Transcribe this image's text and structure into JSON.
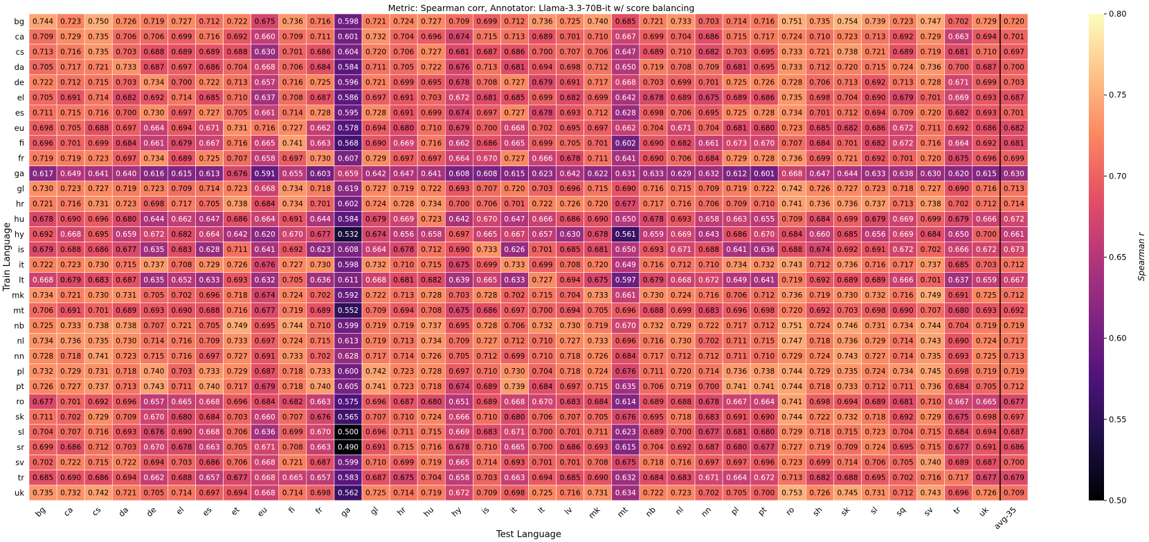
{
  "chart_data": {
    "type": "heatmap",
    "title": "Metric: Spearman corr, Annotator: Llama-3.3-70B-it w/ score balancing",
    "xlabel": "Test Language",
    "ylabel": "Train Language",
    "x_labels": [
      "bg",
      "ca",
      "cs",
      "da",
      "de",
      "el",
      "es",
      "et",
      "eu",
      "fi",
      "fr",
      "ga",
      "gl",
      "hr",
      "hu",
      "hy",
      "is",
      "it",
      "lt",
      "lv",
      "mk",
      "mt",
      "nb",
      "nl",
      "nn",
      "pl",
      "pt",
      "ro",
      "sh",
      "sk",
      "sl",
      "sq",
      "sv",
      "tr",
      "uk",
      "avg-35"
    ],
    "y_labels": [
      "bg",
      "ca",
      "cs",
      "da",
      "de",
      "el",
      "es",
      "eu",
      "fi",
      "fr",
      "ga",
      "gl",
      "hr",
      "hu",
      "hy",
      "is",
      "it",
      "lt",
      "mk",
      "mt",
      "nb",
      "nl",
      "nn",
      "pl",
      "pt",
      "ro",
      "sk",
      "sl",
      "sr",
      "sv",
      "tr",
      "uk"
    ],
    "values": [
      [
        0.744,
        0.723,
        0.75,
        0.726,
        0.719,
        0.727,
        0.712,
        0.722,
        0.675,
        0.736,
        0.716,
        0.598,
        0.721,
        0.724,
        0.727,
        0.709,
        0.699,
        0.712,
        0.736,
        0.725,
        0.74,
        0.685,
        0.721,
        0.733,
        0.703,
        0.714,
        0.716,
        0.751,
        0.735,
        0.754,
        0.739,
        0.723,
        0.747,
        0.702,
        0.729,
        0.72
      ],
      [
        0.709,
        0.729,
        0.735,
        0.706,
        0.706,
        0.699,
        0.716,
        0.692,
        0.66,
        0.709,
        0.711,
        0.601,
        0.732,
        0.704,
        0.696,
        0.674,
        0.715,
        0.713,
        0.689,
        0.701,
        0.71,
        0.667,
        0.699,
        0.704,
        0.686,
        0.715,
        0.717,
        0.724,
        0.71,
        0.723,
        0.713,
        0.692,
        0.729,
        0.663,
        0.694,
        0.701
      ],
      [
        0.713,
        0.716,
        0.735,
        0.703,
        0.688,
        0.689,
        0.689,
        0.688,
        0.63,
        0.701,
        0.686,
        0.604,
        0.72,
        0.706,
        0.727,
        0.681,
        0.687,
        0.686,
        0.7,
        0.707,
        0.706,
        0.647,
        0.689,
        0.71,
        0.682,
        0.703,
        0.695,
        0.733,
        0.721,
        0.738,
        0.721,
        0.689,
        0.719,
        0.681,
        0.71,
        0.697
      ],
      [
        0.705,
        0.717,
        0.721,
        0.733,
        0.687,
        0.697,
        0.686,
        0.704,
        0.668,
        0.706,
        0.684,
        0.584,
        0.711,
        0.705,
        0.722,
        0.676,
        0.713,
        0.681,
        0.694,
        0.698,
        0.712,
        0.65,
        0.719,
        0.708,
        0.709,
        0.681,
        0.695,
        0.733,
        0.712,
        0.72,
        0.715,
        0.724,
        0.736,
        0.7,
        0.687,
        0.7
      ],
      [
        0.722,
        0.712,
        0.715,
        0.703,
        0.734,
        0.7,
        0.722,
        0.713,
        0.657,
        0.716,
        0.725,
        0.596,
        0.721,
        0.699,
        0.695,
        0.678,
        0.708,
        0.727,
        0.679,
        0.691,
        0.717,
        0.668,
        0.703,
        0.699,
        0.701,
        0.725,
        0.726,
        0.728,
        0.706,
        0.713,
        0.692,
        0.713,
        0.728,
        0.671,
        0.699,
        0.703
      ],
      [
        0.705,
        0.691,
        0.714,
        0.682,
        0.692,
        0.714,
        0.685,
        0.71,
        0.637,
        0.708,
        0.687,
        0.586,
        0.697,
        0.691,
        0.703,
        0.672,
        0.681,
        0.685,
        0.699,
        0.682,
        0.699,
        0.642,
        0.678,
        0.689,
        0.675,
        0.689,
        0.686,
        0.735,
        0.698,
        0.704,
        0.69,
        0.679,
        0.701,
        0.669,
        0.693,
        0.687
      ],
      [
        0.711,
        0.715,
        0.716,
        0.7,
        0.73,
        0.697,
        0.727,
        0.705,
        0.661,
        0.714,
        0.728,
        0.595,
        0.728,
        0.691,
        0.699,
        0.674,
        0.697,
        0.727,
        0.678,
        0.693,
        0.712,
        0.628,
        0.698,
        0.706,
        0.695,
        0.725,
        0.728,
        0.734,
        0.701,
        0.712,
        0.694,
        0.709,
        0.72,
        0.682,
        0.693,
        0.701
      ],
      [
        0.698,
        0.705,
        0.688,
        0.697,
        0.664,
        0.694,
        0.671,
        0.731,
        0.716,
        0.727,
        0.662,
        0.578,
        0.694,
        0.68,
        0.71,
        0.679,
        0.7,
        0.668,
        0.702,
        0.695,
        0.697,
        0.662,
        0.704,
        0.671,
        0.704,
        0.681,
        0.68,
        0.723,
        0.685,
        0.682,
        0.686,
        0.672,
        0.711,
        0.692,
        0.686,
        0.682
      ],
      [
        0.696,
        0.701,
        0.699,
        0.684,
        0.661,
        0.679,
        0.667,
        0.716,
        0.665,
        0.741,
        0.663,
        0.568,
        0.69,
        0.669,
        0.716,
        0.662,
        0.686,
        0.665,
        0.699,
        0.705,
        0.701,
        0.602,
        0.69,
        0.682,
        0.661,
        0.673,
        0.67,
        0.707,
        0.684,
        0.701,
        0.682,
        0.672,
        0.716,
        0.664,
        0.692,
        0.681
      ],
      [
        0.719,
        0.719,
        0.723,
        0.697,
        0.734,
        0.689,
        0.725,
        0.707,
        0.658,
        0.697,
        0.73,
        0.607,
        0.729,
        0.697,
        0.697,
        0.664,
        0.67,
        0.727,
        0.666,
        0.678,
        0.711,
        0.641,
        0.69,
        0.706,
        0.684,
        0.729,
        0.728,
        0.736,
        0.699,
        0.721,
        0.692,
        0.701,
        0.72,
        0.675,
        0.696,
        0.699
      ],
      [
        0.617,
        0.649,
        0.641,
        0.64,
        0.616,
        0.615,
        0.613,
        0.676,
        0.591,
        0.655,
        0.603,
        0.659,
        0.642,
        0.647,
        0.641,
        0.608,
        0.608,
        0.615,
        0.623,
        0.642,
        0.622,
        0.631,
        0.633,
        0.629,
        0.632,
        0.612,
        0.601,
        0.668,
        0.647,
        0.644,
        0.633,
        0.638,
        0.63,
        0.62,
        0.615,
        0.63
      ],
      [
        0.73,
        0.723,
        0.727,
        0.719,
        0.723,
        0.709,
        0.714,
        0.723,
        0.668,
        0.734,
        0.718,
        0.619,
        0.727,
        0.719,
        0.722,
        0.693,
        0.707,
        0.72,
        0.703,
        0.696,
        0.715,
        0.69,
        0.716,
        0.715,
        0.709,
        0.719,
        0.722,
        0.742,
        0.726,
        0.727,
        0.723,
        0.718,
        0.727,
        0.69,
        0.716,
        0.713
      ],
      [
        0.721,
        0.716,
        0.731,
        0.723,
        0.698,
        0.717,
        0.705,
        0.738,
        0.684,
        0.734,
        0.701,
        0.602,
        0.724,
        0.728,
        0.734,
        0.7,
        0.706,
        0.701,
        0.722,
        0.726,
        0.72,
        0.677,
        0.717,
        0.716,
        0.706,
        0.709,
        0.71,
        0.741,
        0.736,
        0.736,
        0.737,
        0.713,
        0.738,
        0.702,
        0.712,
        0.714
      ],
      [
        0.678,
        0.69,
        0.696,
        0.68,
        0.644,
        0.662,
        0.647,
        0.686,
        0.664,
        0.691,
        0.644,
        0.584,
        0.679,
        0.669,
        0.723,
        0.642,
        0.67,
        0.647,
        0.666,
        0.686,
        0.69,
        0.65,
        0.678,
        0.693,
        0.658,
        0.663,
        0.655,
        0.709,
        0.684,
        0.699,
        0.679,
        0.669,
        0.699,
        0.679,
        0.666,
        0.672
      ],
      [
        0.692,
        0.668,
        0.695,
        0.659,
        0.672,
        0.682,
        0.664,
        0.642,
        0.62,
        0.67,
        0.677,
        0.532,
        0.674,
        0.656,
        0.658,
        0.697,
        0.665,
        0.667,
        0.657,
        0.63,
        0.678,
        0.561,
        0.659,
        0.669,
        0.643,
        0.686,
        0.67,
        0.684,
        0.66,
        0.685,
        0.656,
        0.669,
        0.684,
        0.65,
        0.7,
        0.661
      ],
      [
        0.679,
        0.688,
        0.686,
        0.677,
        0.635,
        0.683,
        0.628,
        0.711,
        0.641,
        0.692,
        0.623,
        0.608,
        0.664,
        0.678,
        0.712,
        0.69,
        0.733,
        0.626,
        0.701,
        0.685,
        0.681,
        0.65,
        0.693,
        0.671,
        0.688,
        0.641,
        0.636,
        0.688,
        0.674,
        0.692,
        0.691,
        0.672,
        0.702,
        0.666,
        0.672,
        0.673
      ],
      [
        0.722,
        0.723,
        0.73,
        0.715,
        0.737,
        0.708,
        0.729,
        0.726,
        0.676,
        0.727,
        0.73,
        0.598,
        0.732,
        0.71,
        0.715,
        0.675,
        0.699,
        0.733,
        0.699,
        0.708,
        0.72,
        0.649,
        0.716,
        0.712,
        0.71,
        0.734,
        0.732,
        0.743,
        0.712,
        0.736,
        0.716,
        0.717,
        0.737,
        0.685,
        0.703,
        0.712
      ],
      [
        0.668,
        0.679,
        0.683,
        0.687,
        0.635,
        0.652,
        0.633,
        0.693,
        0.632,
        0.705,
        0.636,
        0.611,
        0.668,
        0.681,
        0.682,
        0.639,
        0.665,
        0.633,
        0.727,
        0.694,
        0.675,
        0.597,
        0.679,
        0.668,
        0.672,
        0.649,
        0.641,
        0.719,
        0.692,
        0.689,
        0.689,
        0.666,
        0.701,
        0.637,
        0.659,
        0.667
      ],
      [
        0.734,
        0.721,
        0.73,
        0.731,
        0.705,
        0.702,
        0.696,
        0.718,
        0.674,
        0.724,
        0.702,
        0.592,
        0.722,
        0.713,
        0.728,
        0.703,
        0.728,
        0.702,
        0.715,
        0.704,
        0.733,
        0.661,
        0.73,
        0.724,
        0.716,
        0.706,
        0.712,
        0.736,
        0.719,
        0.73,
        0.732,
        0.716,
        0.749,
        0.691,
        0.725,
        0.712
      ],
      [
        0.706,
        0.691,
        0.701,
        0.689,
        0.693,
        0.69,
        0.688,
        0.716,
        0.677,
        0.719,
        0.689,
        0.552,
        0.709,
        0.694,
        0.708,
        0.675,
        0.686,
        0.697,
        0.7,
        0.694,
        0.705,
        0.696,
        0.688,
        0.699,
        0.683,
        0.696,
        0.698,
        0.72,
        0.692,
        0.703,
        0.698,
        0.69,
        0.707,
        0.68,
        0.693,
        0.692
      ],
      [
        0.725,
        0.733,
        0.738,
        0.738,
        0.707,
        0.721,
        0.705,
        0.749,
        0.695,
        0.744,
        0.71,
        0.599,
        0.719,
        0.719,
        0.737,
        0.695,
        0.728,
        0.706,
        0.732,
        0.73,
        0.719,
        0.67,
        0.732,
        0.729,
        0.722,
        0.717,
        0.712,
        0.751,
        0.724,
        0.746,
        0.731,
        0.734,
        0.744,
        0.704,
        0.719,
        0.719
      ],
      [
        0.734,
        0.736,
        0.735,
        0.73,
        0.714,
        0.716,
        0.709,
        0.733,
        0.697,
        0.724,
        0.715,
        0.613,
        0.719,
        0.713,
        0.734,
        0.709,
        0.727,
        0.712,
        0.71,
        0.727,
        0.733,
        0.696,
        0.716,
        0.73,
        0.702,
        0.711,
        0.715,
        0.747,
        0.718,
        0.736,
        0.729,
        0.714,
        0.743,
        0.69,
        0.724,
        0.717
      ],
      [
        0.728,
        0.718,
        0.741,
        0.723,
        0.715,
        0.716,
        0.697,
        0.727,
        0.691,
        0.733,
        0.702,
        0.628,
        0.717,
        0.714,
        0.726,
        0.705,
        0.712,
        0.699,
        0.71,
        0.718,
        0.726,
        0.684,
        0.717,
        0.712,
        0.712,
        0.711,
        0.71,
        0.729,
        0.724,
        0.743,
        0.727,
        0.714,
        0.735,
        0.693,
        0.725,
        0.713
      ],
      [
        0.732,
        0.729,
        0.731,
        0.718,
        0.74,
        0.703,
        0.733,
        0.729,
        0.687,
        0.718,
        0.733,
        0.6,
        0.742,
        0.723,
        0.728,
        0.697,
        0.71,
        0.73,
        0.704,
        0.718,
        0.724,
        0.676,
        0.711,
        0.72,
        0.714,
        0.736,
        0.738,
        0.744,
        0.729,
        0.735,
        0.724,
        0.734,
        0.745,
        0.698,
        0.719,
        0.719
      ],
      [
        0.726,
        0.727,
        0.737,
        0.713,
        0.743,
        0.711,
        0.74,
        0.717,
        0.679,
        0.718,
        0.74,
        0.605,
        0.741,
        0.723,
        0.718,
        0.674,
        0.689,
        0.739,
        0.684,
        0.697,
        0.715,
        0.635,
        0.706,
        0.719,
        0.7,
        0.741,
        0.741,
        0.744,
        0.718,
        0.733,
        0.712,
        0.711,
        0.736,
        0.684,
        0.705,
        0.712
      ],
      [
        0.677,
        0.701,
        0.692,
        0.696,
        0.657,
        0.665,
        0.668,
        0.696,
        0.684,
        0.682,
        0.663,
        0.575,
        0.696,
        0.687,
        0.68,
        0.651,
        0.689,
        0.668,
        0.67,
        0.683,
        0.684,
        0.614,
        0.689,
        0.688,
        0.678,
        0.667,
        0.664,
        0.741,
        0.698,
        0.694,
        0.689,
        0.681,
        0.71,
        0.667,
        0.665,
        0.677
      ],
      [
        0.711,
        0.702,
        0.729,
        0.709,
        0.67,
        0.68,
        0.684,
        0.703,
        0.66,
        0.707,
        0.676,
        0.565,
        0.707,
        0.71,
        0.724,
        0.666,
        0.71,
        0.68,
        0.706,
        0.707,
        0.705,
        0.676,
        0.695,
        0.718,
        0.683,
        0.691,
        0.69,
        0.744,
        0.722,
        0.732,
        0.718,
        0.692,
        0.729,
        0.675,
        0.698,
        0.697
      ],
      [
        0.704,
        0.707,
        0.716,
        0.693,
        0.676,
        0.69,
        0.668,
        0.706,
        0.636,
        0.699,
        0.67,
        0.5,
        0.696,
        0.711,
        0.715,
        0.669,
        0.683,
        0.671,
        0.7,
        0.701,
        0.711,
        0.623,
        0.689,
        0.7,
        0.677,
        0.681,
        0.68,
        0.729,
        0.718,
        0.715,
        0.723,
        0.704,
        0.715,
        0.684,
        0.694,
        0.687
      ],
      [
        0.699,
        0.686,
        0.712,
        0.703,
        0.67,
        0.678,
        0.663,
        0.705,
        0.671,
        0.708,
        0.663,
        0.49,
        0.691,
        0.715,
        0.716,
        0.678,
        0.71,
        0.665,
        0.7,
        0.686,
        0.693,
        0.615,
        0.704,
        0.692,
        0.687,
        0.68,
        0.677,
        0.727,
        0.719,
        0.709,
        0.724,
        0.695,
        0.715,
        0.677,
        0.691,
        0.686
      ],
      [
        0.702,
        0.722,
        0.715,
        0.722,
        0.694,
        0.703,
        0.686,
        0.706,
        0.668,
        0.721,
        0.687,
        0.599,
        0.71,
        0.699,
        0.719,
        0.665,
        0.714,
        0.693,
        0.701,
        0.701,
        0.708,
        0.675,
        0.718,
        0.716,
        0.697,
        0.697,
        0.696,
        0.723,
        0.699,
        0.714,
        0.706,
        0.705,
        0.74,
        0.689,
        0.687,
        0.7
      ],
      [
        0.685,
        0.69,
        0.686,
        0.694,
        0.662,
        0.688,
        0.657,
        0.677,
        0.668,
        0.665,
        0.657,
        0.583,
        0.687,
        0.675,
        0.704,
        0.658,
        0.703,
        0.663,
        0.694,
        0.685,
        0.69,
        0.632,
        0.684,
        0.683,
        0.671,
        0.664,
        0.672,
        0.713,
        0.682,
        0.688,
        0.695,
        0.702,
        0.716,
        0.717,
        0.677,
        0.679
      ],
      [
        0.735,
        0.732,
        0.742,
        0.721,
        0.705,
        0.714,
        0.697,
        0.694,
        0.668,
        0.714,
        0.698,
        0.562,
        0.725,
        0.714,
        0.719,
        0.672,
        0.709,
        0.698,
        0.725,
        0.716,
        0.731,
        0.634,
        0.722,
        0.723,
        0.702,
        0.705,
        0.7,
        0.753,
        0.726,
        0.745,
        0.731,
        0.712,
        0.743,
        0.696,
        0.726,
        0.709
      ]
    ],
    "colorbar": {
      "label": "Spearman r",
      "min": 0.5,
      "max": 0.8,
      "ticks": [
        "0.50",
        "0.55",
        "0.60",
        "0.65",
        "0.70",
        "0.75",
        "0.80"
      ],
      "colormap": "magma"
    },
    "separator_before_column": "avg-35"
  }
}
